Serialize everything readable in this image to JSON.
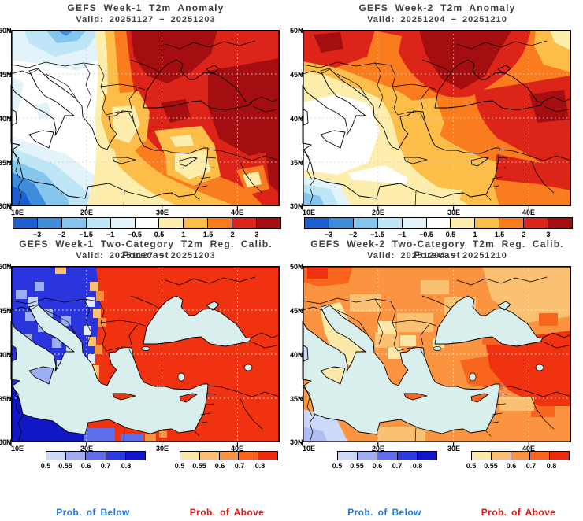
{
  "panels": [
    {
      "title": "GEFS Week-1 T2m Anomaly",
      "valid": "Valid: 20251127 − 20251203"
    },
    {
      "title": "GEFS Week-2 T2m Anomaly",
      "valid": "Valid: 20251204 − 20251210"
    },
    {
      "title": "GEFS Week-1 Two-Category T2m Reg. Calib. Forecast",
      "valid": "Valid: 20251127 − 20251203"
    },
    {
      "title": "GEFS Week-2 Two-Category T2m Reg. Calib. Forecast",
      "valid": "Valid: 20251204 − 20251210"
    }
  ],
  "axes": {
    "lat": [
      "50N",
      "45N",
      "40N",
      "35N",
      "30N"
    ],
    "lon": [
      "10E",
      "20E",
      "30E",
      "40E"
    ]
  },
  "anomaly_colorbar": {
    "ticks": [
      "−3",
      "−2",
      "−1.5",
      "−1",
      "−0.5",
      "0.5",
      "1",
      "1.5",
      "2",
      "3"
    ],
    "colors": [
      "#1b5fce",
      "#3e8ddb",
      "#85c6ee",
      "#bfe6f6",
      "#e2f3fa",
      "#ffffff",
      "#fdeead",
      "#fcbe49",
      "#f97c1e",
      "#dd2418",
      "#a50e10"
    ]
  },
  "prob_below_colorbar": {
    "ticks": [
      "0.5",
      "0.55",
      "0.6",
      "0.7",
      "0.8"
    ],
    "colors": [
      "#ccd9f8",
      "#9dadf3",
      "#5e6ee9",
      "#2b3ade",
      "#1115cb"
    ]
  },
  "prob_above_colorbar": {
    "ticks": [
      "0.5",
      "0.55",
      "0.6",
      "0.7",
      "0.8"
    ],
    "colors": [
      "#fce9a9",
      "#fbc173",
      "#fa9441",
      "#f8651d",
      "#ee2b0b"
    ]
  },
  "footer": {
    "below_label": "Prob. of Below",
    "above_label": "Prob. of Above",
    "below_color": "#1e78e8",
    "above_color": "#e81410"
  },
  "colors": {
    "sea_mask": "#d9efee",
    "coastline": "#000000",
    "title_text": "#3d3d3d"
  },
  "chart_data": [
    {
      "type": "heatmap",
      "subtype": "filled-contour anomaly map",
      "title": "GEFS Week-1 T2m Anomaly",
      "valid": "20251127 − 20251203",
      "region": {
        "lon_range": [
          10,
          45.5
        ],
        "lat_range": [
          30,
          50
        ]
      },
      "scale_ticks": [
        -3,
        -2,
        -1.5,
        -1,
        -0.5,
        0.5,
        1,
        1.5,
        2,
        3
      ],
      "legend_position": "bottom",
      "grid": "dotted 5-deg lat / 10-deg lon",
      "pattern": [
        {
          "area": "NW Africa (SW corner)",
          "value": "-3 to -1"
        },
        {
          "area": "NW corner / Alps-N Italy",
          "value": "-1.5 to -0.5"
        },
        {
          "area": "Italy and central Mediterranean",
          "value": "-0.5 to 0.5 (near normal)"
        },
        {
          "area": "transition band near 20-22E",
          "value": "0.5 to 1.5"
        },
        {
          "area": "Balkans, Ukraine, Black Sea, Turkey, Middle East",
          "value": "2 to >3"
        },
        {
          "area": "Aegean, S Turkey coast, Cyprus-Levant pockets",
          "value": "0.5 to 1.5"
        }
      ]
    },
    {
      "type": "heatmap",
      "subtype": "filled-contour anomaly map",
      "title": "GEFS Week-2 T2m Anomaly",
      "valid": "20251204 − 20251210",
      "region": {
        "lon_range": [
          10,
          45.5
        ],
        "lat_range": [
          30,
          50
        ]
      },
      "scale_ticks": [
        -3,
        -2,
        -1.5,
        -1,
        -0.5,
        0.5,
        1,
        1.5,
        2,
        3
      ],
      "legend_position": "bottom",
      "pattern": [
        {
          "area": "central Mediterranean / S Italy",
          "value": "-0.5 to 0.5 (near normal)"
        },
        {
          "area": "SW corner (NW Africa coast)",
          "value": "-1.5 to -0.5"
        },
        {
          "area": "south band 18-30E",
          "value": "0.5 to 1"
        },
        {
          "area": "Balkans, Carpathians, Ukraine",
          "value": "2 to >3"
        },
        {
          "area": "Turkey, Caucasus, Middle East",
          "value": "1.5 to >3"
        },
        {
          "area": "NE corner",
          "value": "0.5 to 1.5"
        }
      ]
    },
    {
      "type": "heatmap",
      "subtype": "two-category probability map (1-deg grid, sea masked)",
      "title": "GEFS Week-1 Two-Category T2m Reg. Calib. Forecast",
      "valid": "20251127 − 20251203",
      "region": {
        "lon_range": [
          10,
          45.5
        ],
        "lat_range": [
          30,
          50
        ]
      },
      "below_scale_ticks": [
        0.5,
        0.55,
        0.6,
        0.7,
        0.8
      ],
      "above_scale_ticks": [
        0.5,
        0.55,
        0.6,
        0.7,
        0.8
      ],
      "pattern": [
        {
          "area": "Italy, Alps, W Balkans",
          "value": "Prob. of Below 0.6-0.8"
        },
        {
          "area": "NW Africa",
          "value": "Prob. of Below >0.8"
        },
        {
          "area": "narrow transition band ~21E (Albania/W Greece)",
          "value": "Prob. of Above 0.5-0.6"
        },
        {
          "area": "east of ~22E: E Balkans, Ukraine, Turkey, Middle East",
          "value": "Prob. of Above >0.8"
        },
        {
          "area": "sea",
          "value": "masked"
        }
      ]
    },
    {
      "type": "heatmap",
      "subtype": "two-category probability map (1-deg grid, sea masked)",
      "title": "GEFS Week-2 Two-Category T2m Reg. Calib. Forecast",
      "valid": "20251204 − 20251210",
      "region": {
        "lon_range": [
          10,
          45.5
        ],
        "lat_range": [
          30,
          50
        ]
      },
      "below_scale_ticks": [
        0.5,
        0.55,
        0.6,
        0.7,
        0.8
      ],
      "above_scale_ticks": [
        0.5,
        0.55,
        0.6,
        0.7,
        0.8
      ],
      "pattern": [
        {
          "area": "most land areas",
          "value": "Prob. of Above 0.55-0.7"
        },
        {
          "area": "Italy, S Italy, Sicily",
          "value": "Prob. of Above 0.5-0.55"
        },
        {
          "area": "E Turkey, Syria/Iraq",
          "value": "Prob. of Above >0.8"
        },
        {
          "area": "SW corner (NW Africa)",
          "value": "Prob. of Below 0.5-0.6"
        },
        {
          "area": "sea",
          "value": "masked"
        }
      ]
    }
  ]
}
